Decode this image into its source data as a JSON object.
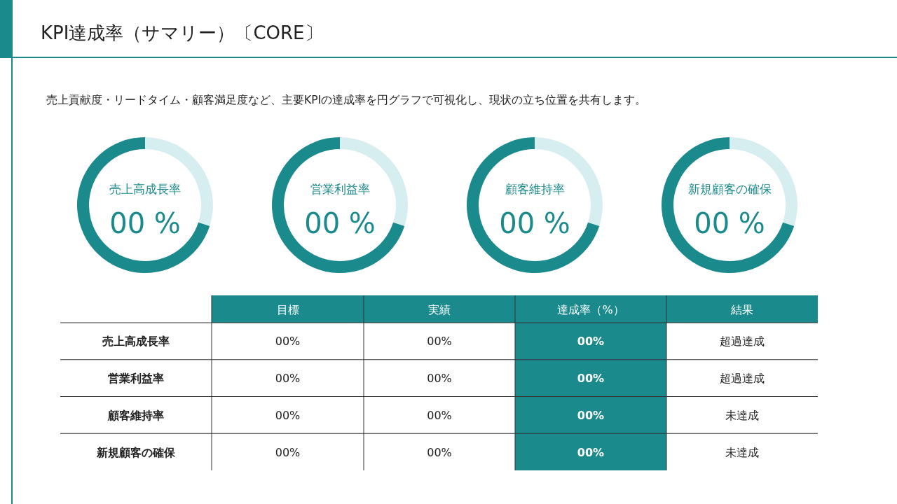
{
  "chart_data": [
    {
      "type": "other",
      "title": "KPI達成率（サマリー）〔CORE〕",
      "subtitle": "売上貢献度・リードタイム・顧客満足度など、主要KPIの達成率を円グラフで可視化し、現状の立ち位置を共有します。"
    },
    {
      "type": "donut",
      "title": "売上高成長率",
      "categories": [
        null,
        null
      ],
      "values": [
        30,
        70
      ],
      "colors": [
        "#d7eef0",
        "#1a8a8c"
      ],
      "annotations": [
        "00 %"
      ]
    },
    {
      "type": "donut",
      "title": "営業利益率",
      "categories": [
        null,
        null
      ],
      "values": [
        30,
        70
      ],
      "colors": [
        "#d7eef0",
        "#1a8a8c"
      ],
      "annotations": [
        "00 %"
      ]
    },
    {
      "type": "donut",
      "title": "顧客維持率",
      "categories": [
        null,
        null
      ],
      "values": [
        30,
        70
      ],
      "colors": [
        "#d7eef0",
        "#1a8a8c"
      ],
      "annotations": [
        "00 %"
      ]
    },
    {
      "type": "donut",
      "title": "新規顧客の確保",
      "categories": [
        null,
        null
      ],
      "values": [
        30,
        70
      ],
      "colors": [
        "#d7eef0",
        "#1a8a8c"
      ],
      "annotations": [
        "00 %"
      ]
    },
    {
      "type": "other",
      "categories": [
        "目標",
        "実績",
        "達成率（%）",
        "結果"
      ],
      "y_categories": [
        "売上高成長率",
        "営業利益率",
        "顧客維持率",
        "新規顧客の確保"
      ],
      "colors": [
        null,
        null,
        "#1a8a8c",
        null
      ],
      "cell_labels": [
        [
          "00%",
          "00%",
          "00%",
          "超過達成"
        ],
        [
          "00%",
          "00%",
          "00%",
          "超過達成"
        ],
        [
          "00%",
          "00%",
          "00%",
          "未達成"
        ],
        [
          "00%",
          "00%",
          "00%",
          "未達成"
        ]
      ]
    }
  ]
}
